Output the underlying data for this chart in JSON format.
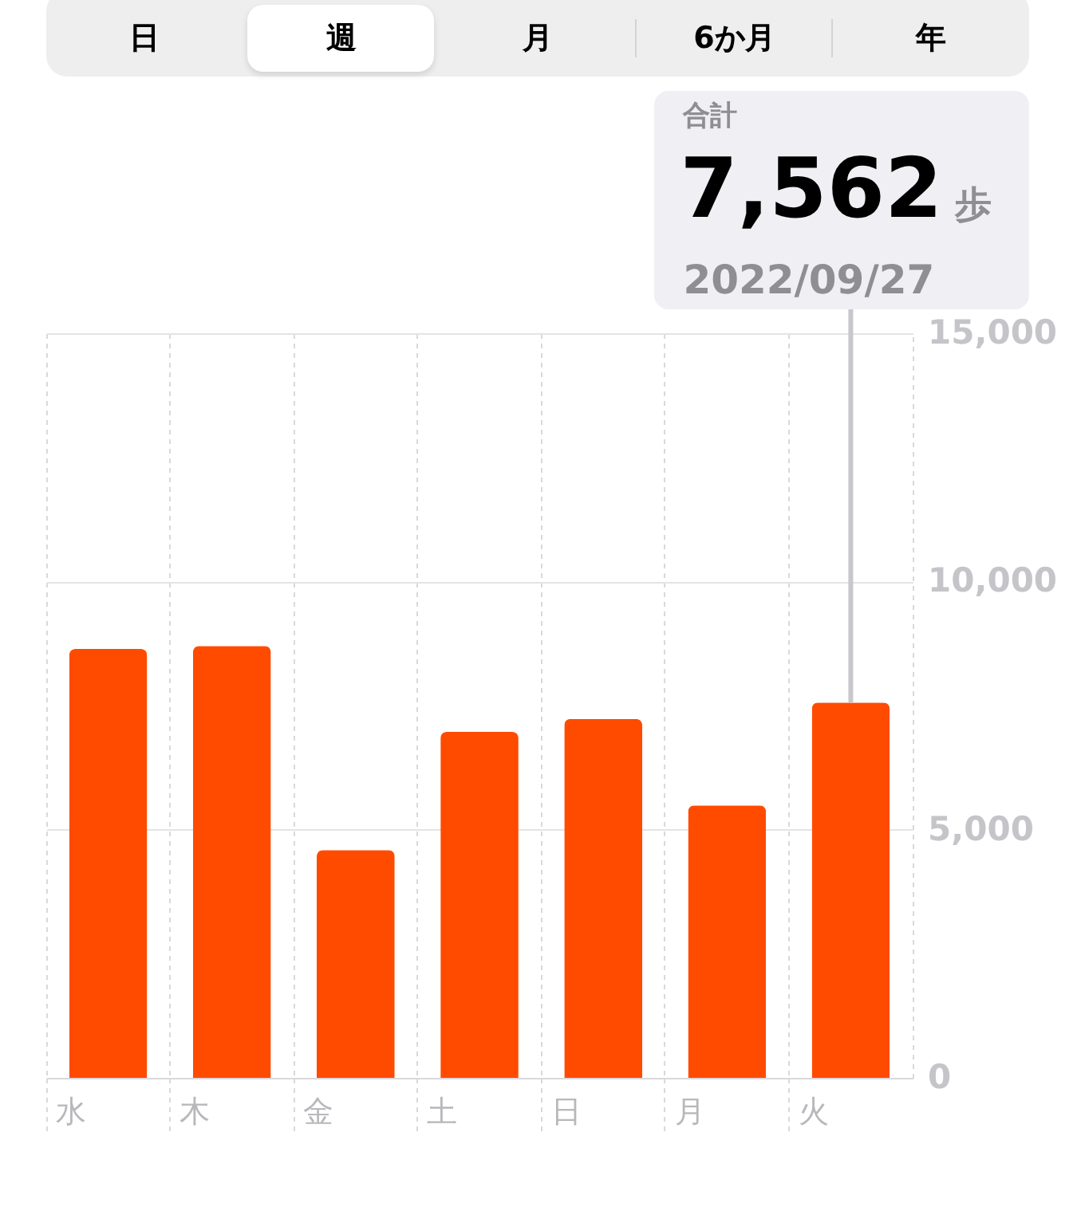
{
  "chart_data": {
    "type": "bar",
    "categories": [
      "水",
      "木",
      "金",
      "土",
      "日",
      "月",
      "火"
    ],
    "values": [
      8640,
      8700,
      4590,
      6970,
      7230,
      5490,
      7562
    ],
    "color": "#ff4b00",
    "ylim": [
      0,
      15000
    ],
    "yticks": [
      0,
      {
        "value": 5000,
        "label": "5,000"
      },
      {
        "value": 10000,
        "label": "10,000"
      },
      {
        "value": 15000,
        "label": "15,000"
      }
    ],
    "grid": true,
    "ref_lines": [
      {
        "axis": "x",
        "value": "火",
        "color": "#c7c7cc"
      }
    ],
    "annotations": [
      "日",
      "週",
      "月",
      "6か月",
      "年",
      "合計",
      "7,562",
      "歩",
      "2022/09/27"
    ]
  }
}
